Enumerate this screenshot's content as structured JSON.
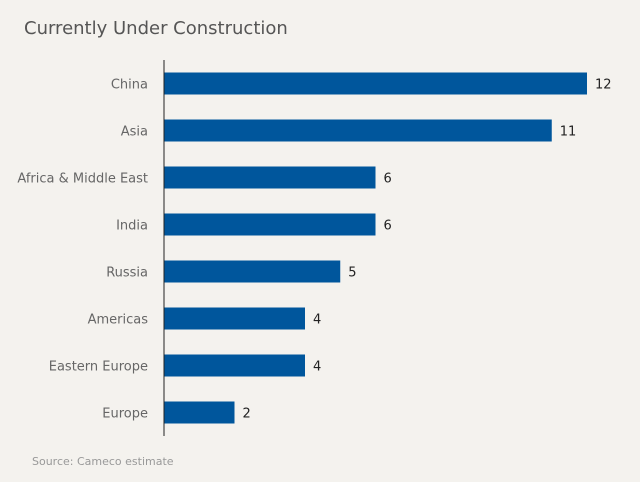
{
  "colors": {
    "background": "#f4f2ee",
    "bar": "#00569c",
    "axis": "#222222"
  },
  "chart_data": {
    "type": "bar",
    "orientation": "horizontal",
    "title": "Currently Under Construction",
    "source": "Source: Cameco estimate",
    "categories": [
      "China",
      "Asia",
      "Africa & Middle East",
      "India",
      "Russia",
      "Americas",
      "Eastern Europe",
      "Europe"
    ],
    "values": [
      12,
      11,
      6,
      6,
      5,
      4,
      4,
      2
    ],
    "xlim": [
      0,
      12
    ],
    "grid": false,
    "legend": "none",
    "data_labels": true
  }
}
